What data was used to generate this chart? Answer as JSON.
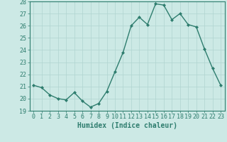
{
  "x": [
    0,
    1,
    2,
    3,
    4,
    5,
    6,
    7,
    8,
    9,
    10,
    11,
    12,
    13,
    14,
    15,
    16,
    17,
    18,
    19,
    20,
    21,
    22,
    23
  ],
  "y": [
    21.1,
    20.9,
    20.3,
    20.0,
    19.9,
    20.5,
    19.8,
    19.3,
    19.6,
    20.6,
    22.2,
    23.8,
    26.0,
    26.7,
    26.1,
    27.8,
    27.7,
    26.5,
    27.0,
    26.1,
    25.9,
    24.1,
    22.5,
    21.1
  ],
  "line_color": "#2e7d6e",
  "marker": "D",
  "marker_size": 2,
  "line_width": 1.0,
  "bg_color": "#cce9e5",
  "grid_color": "#b0d4d0",
  "xlabel": "Humidex (Indice chaleur)",
  "xlim": [
    -0.5,
    23.5
  ],
  "ylim": [
    19,
    28
  ],
  "yticks": [
    19,
    20,
    21,
    22,
    23,
    24,
    25,
    26,
    27,
    28
  ],
  "xticks": [
    0,
    1,
    2,
    3,
    4,
    5,
    6,
    7,
    8,
    9,
    10,
    11,
    12,
    13,
    14,
    15,
    16,
    17,
    18,
    19,
    20,
    21,
    22,
    23
  ],
  "xlabel_fontsize": 7,
  "tick_fontsize": 6
}
